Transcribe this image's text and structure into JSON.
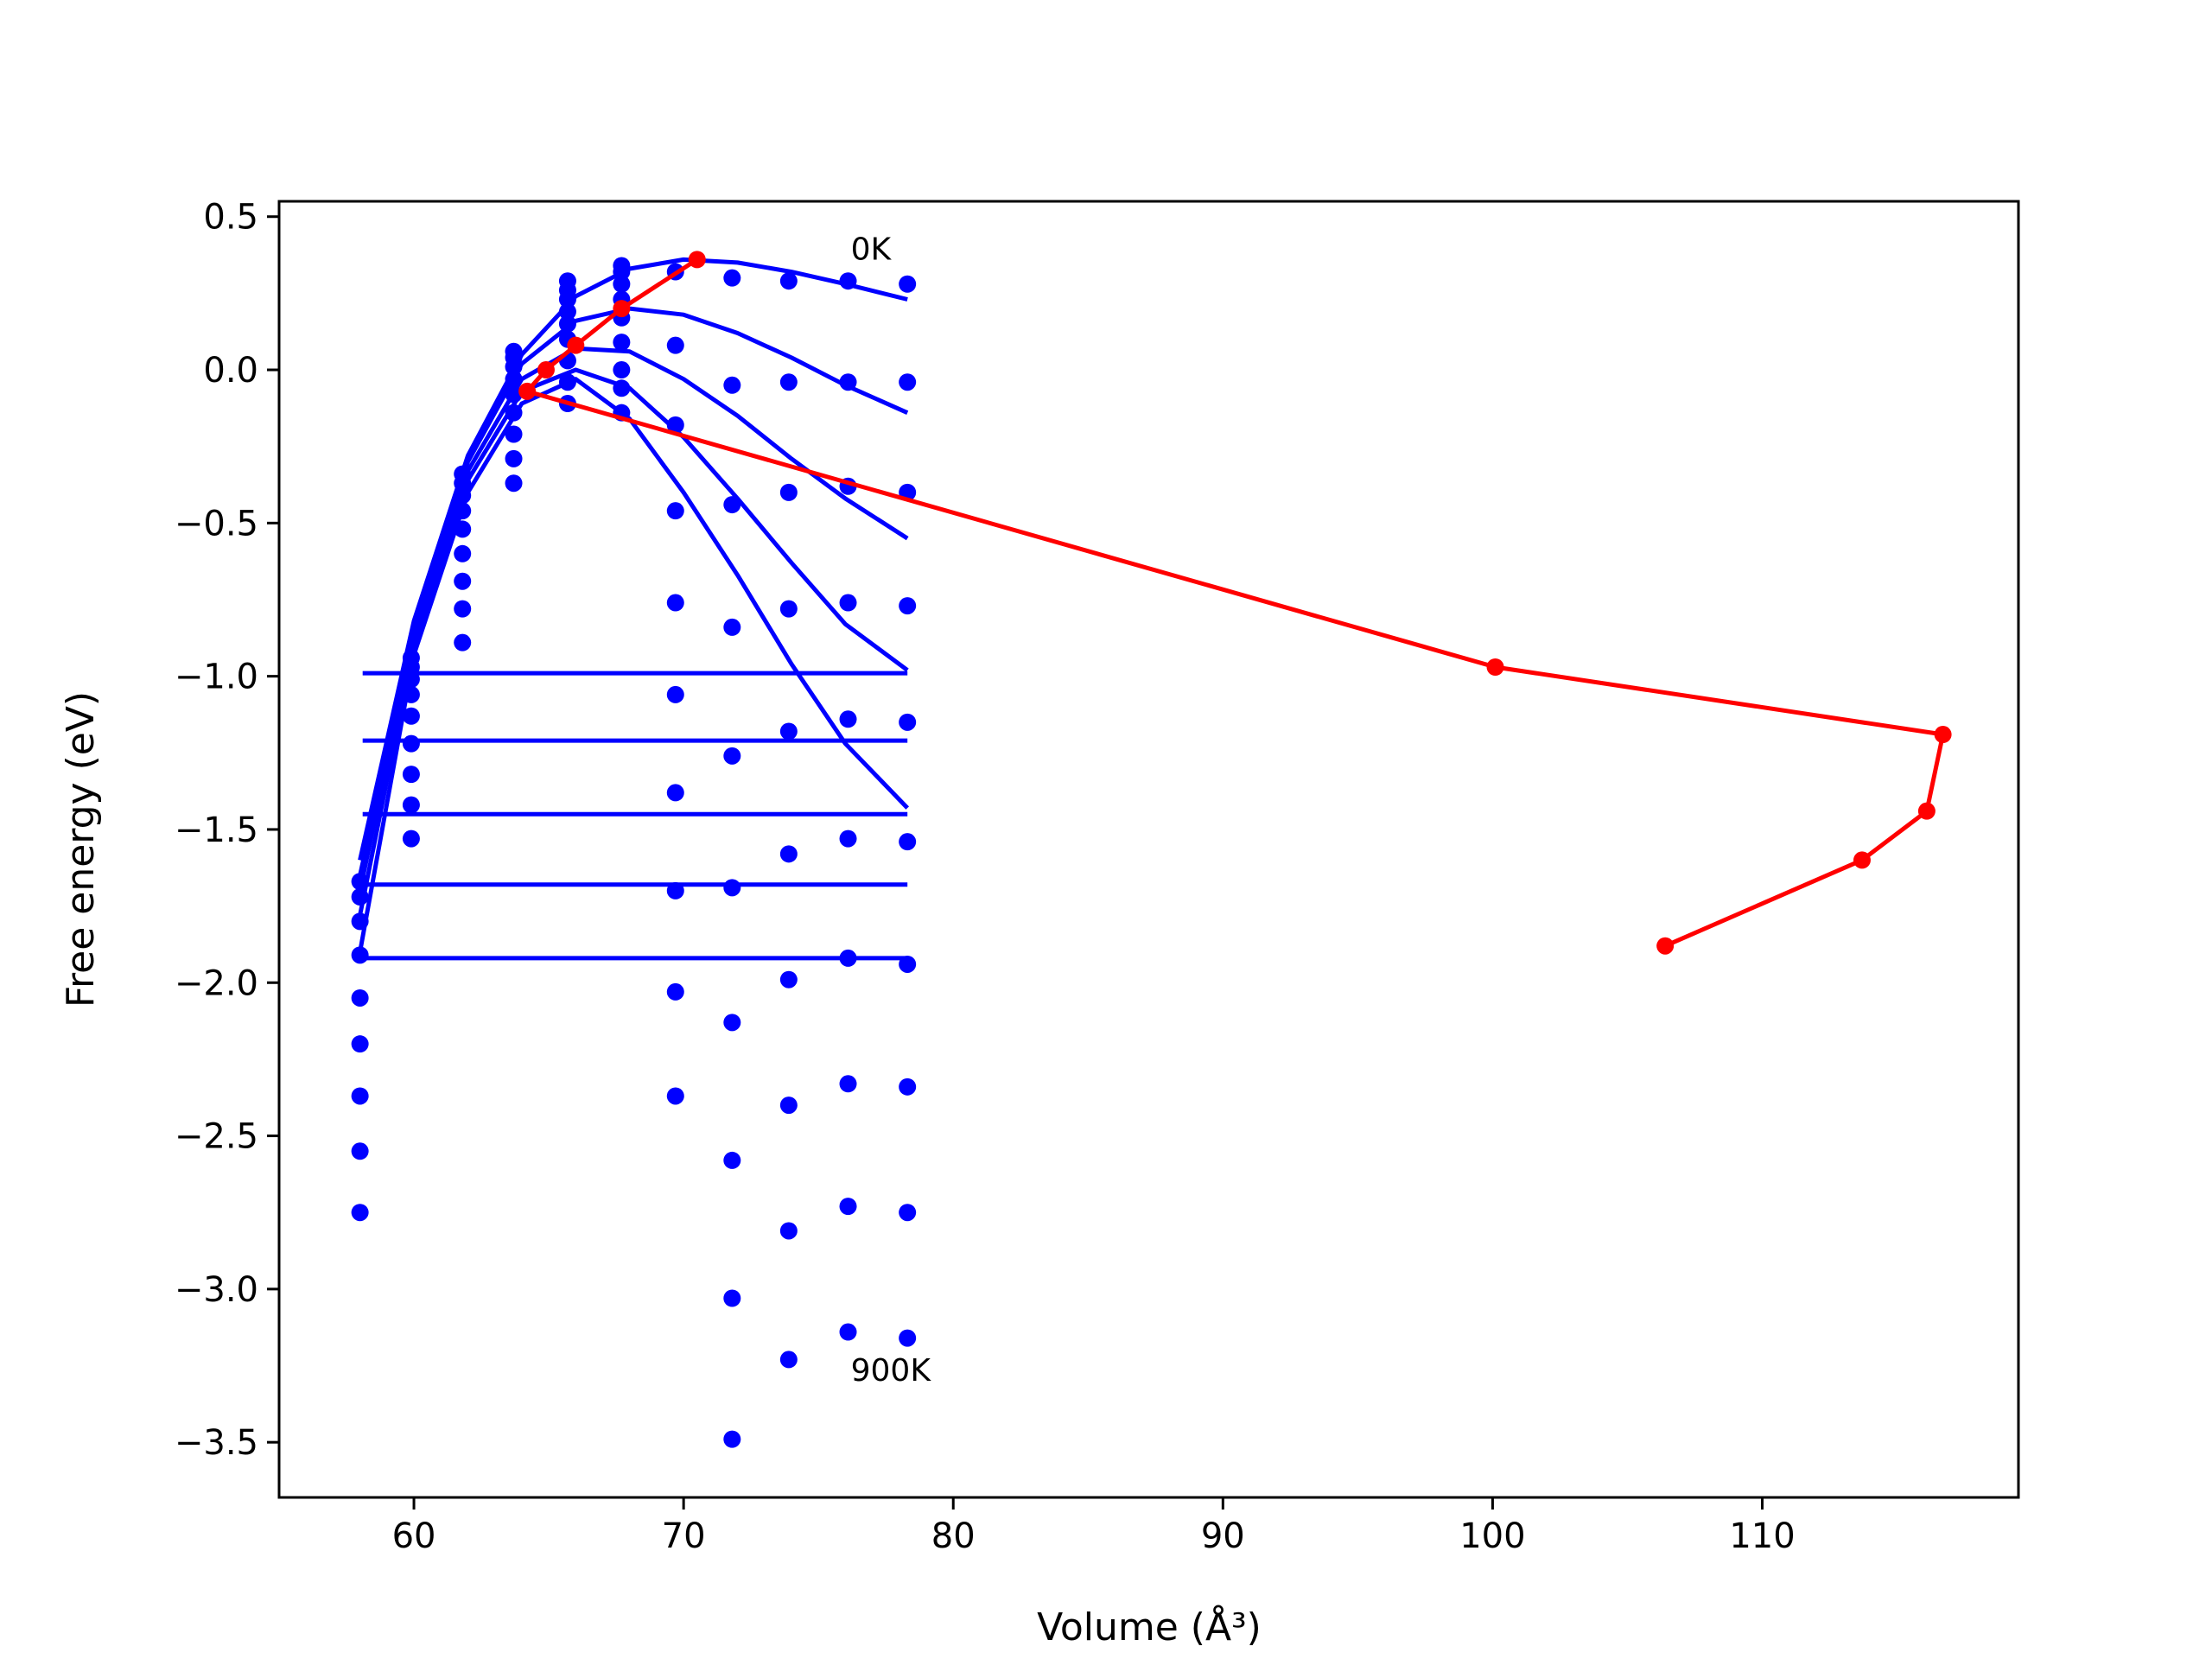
{
  "chart_data": {
    "type": "scatter",
    "xlabel": "Volume (Å³)",
    "ylabel": "Free energy (eV)",
    "xlim": [
      55,
      119.5
    ],
    "ylim": [
      -3.68,
      0.55
    ],
    "xticks": [
      60,
      70,
      80,
      90,
      100,
      110
    ],
    "yticks": [
      0.5,
      0.0,
      -0.5,
      -1.0,
      -1.5,
      -2.0,
      -2.5,
      -3.0,
      -3.5
    ],
    "grid": false,
    "legend": "none",
    "colors": {
      "data": "#0000ff",
      "path": "#ff0000"
    },
    "annotations": [
      {
        "text": "0K",
        "x": 76.2,
        "y": 0.36
      },
      {
        "text": "900K",
        "x": 76.2,
        "y": -3.3
      }
    ],
    "scatter_points": {
      "x": [
        58.0,
        59.9,
        61.8,
        63.7,
        65.7,
        67.7,
        69.7,
        71.8,
        73.9,
        76.1,
        78.3
      ],
      "y": [
        [
          -1.67,
          -1.72,
          -1.8,
          -1.91,
          -2.05,
          -2.2,
          -2.37,
          -2.55,
          -2.75
        ],
        [
          -0.94,
          -0.97,
          -1.01,
          -1.06,
          -1.13,
          -1.22,
          -1.32,
          -1.42,
          -1.53
        ],
        [
          -0.34,
          -0.37,
          -0.41,
          -0.46,
          -0.52,
          -0.6,
          -0.69,
          -0.78,
          -0.89
        ],
        [
          0.06,
          0.04,
          0.01,
          -0.03,
          -0.08,
          -0.14,
          -0.21,
          -0.29,
          -0.37
        ],
        [
          0.29,
          0.26,
          0.23,
          0.19,
          0.15,
          0.1,
          0.03,
          -0.04,
          -0.11
        ],
        [
          0.34,
          0.32,
          0.28,
          0.23,
          0.17,
          0.09,
          0.0,
          -0.06,
          -0.14
        ],
        [
          0.32,
          0.08,
          -0.18,
          -0.46,
          -0.76,
          -1.06,
          -1.38,
          -1.7,
          -2.03,
          -2.37
        ],
        [
          0.3,
          -0.05,
          -0.44,
          -0.84,
          -1.26,
          -1.69,
          -2.13,
          -2.58,
          -3.03,
          -3.49
        ],
        [
          0.29,
          -0.04,
          -0.4,
          -0.78,
          -1.18,
          -1.58,
          -1.99,
          -2.4,
          -2.81,
          -3.23
        ],
        [
          0.29,
          -0.04,
          -0.38,
          -0.76,
          -1.14,
          -1.53,
          -1.92,
          -2.33,
          -2.73,
          -3.14
        ],
        [
          0.28,
          -0.04,
          -0.4,
          -0.77,
          -1.15,
          -1.54,
          -1.94,
          -2.34,
          -2.75,
          -3.16
        ]
      ]
    },
    "fit_curves": [
      {
        "x": [
          58,
          60,
          62,
          64,
          66,
          68,
          70,
          72,
          74,
          76,
          78.3
        ],
        "y": [
          -1.6,
          -0.82,
          -0.28,
          0.05,
          0.24,
          0.33,
          0.36,
          0.35,
          0.32,
          0.28,
          0.23
        ]
      },
      {
        "x": [
          58,
          60,
          62,
          64,
          66,
          68,
          70,
          72,
          74,
          76,
          78.3
        ],
        "y": [
          -1.65,
          -0.85,
          -0.3,
          0.02,
          0.16,
          0.2,
          0.18,
          0.12,
          0.04,
          -0.05,
          -0.14
        ]
      },
      {
        "x": [
          58,
          60,
          62,
          64,
          66,
          68,
          70,
          72,
          74,
          76,
          78.3
        ],
        "y": [
          -1.7,
          -0.87,
          -0.33,
          -0.03,
          0.07,
          0.06,
          -0.03,
          -0.15,
          -0.29,
          -0.42,
          -0.55
        ]
      },
      {
        "x": [
          58,
          60,
          62,
          64,
          66,
          68,
          70,
          72,
          74,
          76,
          78.3
        ],
        "y": [
          -1.78,
          -0.9,
          -0.36,
          -0.07,
          0.0,
          -0.06,
          -0.22,
          -0.42,
          -0.63,
          -0.83,
          -0.98
        ]
      },
      {
        "x": [
          58,
          60,
          62,
          64,
          66,
          68,
          70,
          72,
          74,
          76,
          78.3
        ],
        "y": [
          -1.9,
          -0.93,
          -0.4,
          -0.11,
          -0.03,
          -0.16,
          -0.4,
          -0.67,
          -0.96,
          -1.22,
          -1.43
        ]
      },
      {
        "x": [
          58.1,
          78.3
        ],
        "y": [
          -0.99,
          -0.99
        ]
      },
      {
        "x": [
          58.1,
          78.3
        ],
        "y": [
          -1.21,
          -1.21
        ]
      },
      {
        "x": [
          58.1,
          78.3
        ],
        "y": [
          -1.45,
          -1.45
        ]
      },
      {
        "x": [
          58.1,
          78.3
        ],
        "y": [
          -1.68,
          -1.68
        ]
      },
      {
        "x": [
          58.1,
          78.3
        ],
        "y": [
          -1.92,
          -1.92
        ]
      }
    ],
    "series": [
      {
        "type": "line",
        "x": [
          70.5,
          67.7,
          66.0,
          64.9,
          64.2,
          100.1,
          116.7,
          116.1,
          113.7,
          106.4
        ],
        "y": [
          0.36,
          0.2,
          0.08,
          0.0,
          -0.07,
          -0.97,
          -1.19,
          -1.44,
          -1.6,
          -1.88
        ]
      }
    ]
  }
}
